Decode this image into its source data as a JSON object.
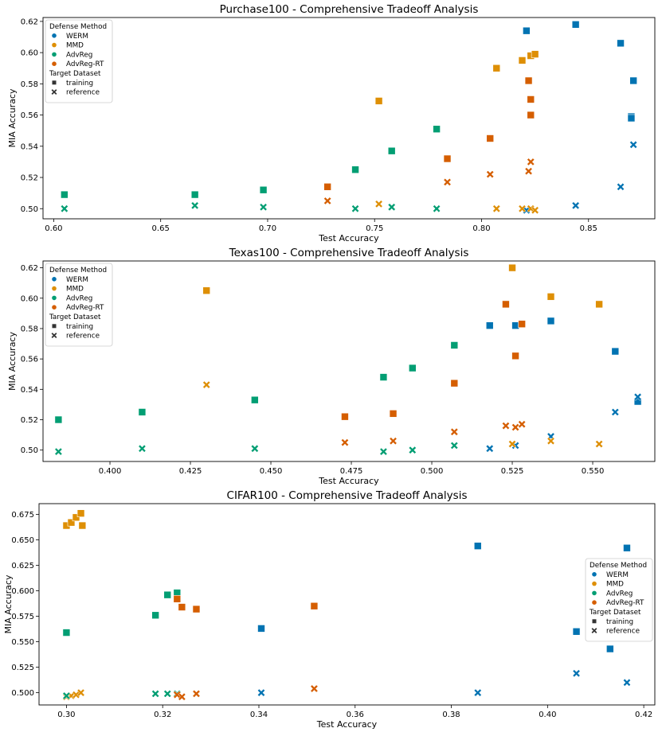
{
  "colors": {
    "WERM": "#0173b2",
    "MMD": "#de8f05",
    "AdvReg": "#029e73",
    "AdvReg-RT": "#d55e00"
  },
  "chart_data": [
    {
      "type": "scatter",
      "title": "Purchase100 - Comprehensive Tradeoff Analysis",
      "xlabel": "Test Accuracy",
      "ylabel": "MIA Accuracy",
      "xlim": [
        0.595,
        0.881
      ],
      "ylim": [
        0.4935,
        0.6225
      ],
      "xticks": [
        0.6,
        0.65,
        0.7,
        0.75,
        0.8,
        0.85
      ],
      "xtick_labels": [
        "0.60",
        "0.65",
        "0.70",
        "0.75",
        "0.80",
        "0.85"
      ],
      "yticks": [
        0.5,
        0.52,
        0.54,
        0.56,
        0.58,
        0.6,
        0.62
      ],
      "ytick_labels": [
        "0.50",
        "0.52",
        "0.54",
        "0.56",
        "0.58",
        "0.60",
        "0.62"
      ],
      "legend_position": "upper-left",
      "legend": {
        "title1": "Defense Method",
        "methods": [
          "WERM",
          "MMD",
          "AdvReg",
          "AdvReg-RT"
        ],
        "title2": "Target Dataset",
        "datasets": [
          "training",
          "reference"
        ]
      },
      "series": [
        {
          "name": "WERM",
          "marker": "training",
          "points": [
            [
              0.821,
              0.614
            ],
            [
              0.844,
              0.618
            ],
            [
              0.865,
              0.606
            ],
            [
              0.871,
              0.582
            ],
            [
              0.87,
              0.559
            ],
            [
              0.87,
              0.558
            ]
          ]
        },
        {
          "name": "WERM",
          "marker": "reference",
          "points": [
            [
              0.821,
              0.499
            ],
            [
              0.844,
              0.502
            ],
            [
              0.865,
              0.514
            ],
            [
              0.871,
              0.541
            ]
          ]
        },
        {
          "name": "MMD",
          "marker": "training",
          "points": [
            [
              0.752,
              0.569
            ],
            [
              0.807,
              0.59
            ],
            [
              0.819,
              0.595
            ],
            [
              0.823,
              0.598
            ],
            [
              0.825,
              0.599
            ]
          ]
        },
        {
          "name": "MMD",
          "marker": "reference",
          "points": [
            [
              0.752,
              0.503
            ],
            [
              0.807,
              0.5
            ],
            [
              0.819,
              0.5
            ],
            [
              0.823,
              0.5
            ],
            [
              0.825,
              0.499
            ]
          ]
        },
        {
          "name": "AdvReg",
          "marker": "training",
          "points": [
            [
              0.605,
              0.509
            ],
            [
              0.666,
              0.509
            ],
            [
              0.698,
              0.512
            ],
            [
              0.741,
              0.525
            ],
            [
              0.758,
              0.537
            ],
            [
              0.779,
              0.551
            ]
          ]
        },
        {
          "name": "AdvReg",
          "marker": "reference",
          "points": [
            [
              0.605,
              0.5
            ],
            [
              0.666,
              0.502
            ],
            [
              0.698,
              0.501
            ],
            [
              0.741,
              0.5
            ],
            [
              0.758,
              0.501
            ],
            [
              0.779,
              0.5
            ]
          ]
        },
        {
          "name": "AdvReg-RT",
          "marker": "training",
          "points": [
            [
              0.728,
              0.514
            ],
            [
              0.784,
              0.532
            ],
            [
              0.804,
              0.545
            ],
            [
              0.822,
              0.582
            ],
            [
              0.823,
              0.57
            ],
            [
              0.823,
              0.56
            ]
          ]
        },
        {
          "name": "AdvReg-RT",
          "marker": "reference",
          "points": [
            [
              0.728,
              0.505
            ],
            [
              0.784,
              0.517
            ],
            [
              0.804,
              0.522
            ],
            [
              0.822,
              0.524
            ],
            [
              0.823,
              0.53
            ]
          ]
        }
      ]
    },
    {
      "type": "scatter",
      "title": "Texas100 - Comprehensive Tradeoff Analysis",
      "xlabel": "Test Accuracy",
      "ylabel": "MIA Accuracy",
      "xlim": [
        0.3792,
        0.5693
      ],
      "ylim": [
        0.4925,
        0.6245
      ],
      "xticks": [
        0.4,
        0.425,
        0.45,
        0.475,
        0.5,
        0.525,
        0.55
      ],
      "xtick_labels": [
        "0.400",
        "0.425",
        "0.450",
        "0.475",
        "0.500",
        "0.525",
        "0.550"
      ],
      "yticks": [
        0.5,
        0.52,
        0.54,
        0.56,
        0.58,
        0.6,
        0.62
      ],
      "ytick_labels": [
        "0.50",
        "0.52",
        "0.54",
        "0.56",
        "0.58",
        "0.60",
        "0.62"
      ],
      "legend_position": "upper-left",
      "legend": {
        "title1": "Defense Method",
        "methods": [
          "WERM",
          "MMD",
          "AdvReg",
          "AdvReg-RT"
        ],
        "title2": "Target Dataset",
        "datasets": [
          "training",
          "reference"
        ]
      },
      "series": [
        {
          "name": "WERM",
          "marker": "training",
          "points": [
            [
              0.518,
              0.582
            ],
            [
              0.526,
              0.582
            ],
            [
              0.537,
              0.585
            ],
            [
              0.557,
              0.565
            ],
            [
              0.564,
              0.532
            ]
          ]
        },
        {
          "name": "WERM",
          "marker": "reference",
          "points": [
            [
              0.518,
              0.501
            ],
            [
              0.526,
              0.503
            ],
            [
              0.537,
              0.509
            ],
            [
              0.557,
              0.525
            ],
            [
              0.564,
              0.535
            ]
          ]
        },
        {
          "name": "MMD",
          "marker": "training",
          "points": [
            [
              0.43,
              0.605
            ],
            [
              0.525,
              0.62
            ],
            [
              0.537,
              0.601
            ],
            [
              0.552,
              0.596
            ]
          ]
        },
        {
          "name": "MMD",
          "marker": "reference",
          "points": [
            [
              0.43,
              0.543
            ],
            [
              0.525,
              0.504
            ],
            [
              0.537,
              0.506
            ],
            [
              0.552,
              0.504
            ]
          ]
        },
        {
          "name": "AdvReg",
          "marker": "training",
          "points": [
            [
              0.384,
              0.52
            ],
            [
              0.41,
              0.525
            ],
            [
              0.445,
              0.533
            ],
            [
              0.485,
              0.548
            ],
            [
              0.494,
              0.554
            ],
            [
              0.507,
              0.569
            ]
          ]
        },
        {
          "name": "AdvReg",
          "marker": "reference",
          "points": [
            [
              0.384,
              0.499
            ],
            [
              0.41,
              0.501
            ],
            [
              0.445,
              0.501
            ],
            [
              0.485,
              0.499
            ],
            [
              0.494,
              0.5
            ],
            [
              0.507,
              0.503
            ]
          ]
        },
        {
          "name": "AdvReg-RT",
          "marker": "training",
          "points": [
            [
              0.473,
              0.522
            ],
            [
              0.488,
              0.524
            ],
            [
              0.507,
              0.544
            ],
            [
              0.523,
              0.596
            ],
            [
              0.526,
              0.562
            ],
            [
              0.528,
              0.583
            ]
          ]
        },
        {
          "name": "AdvReg-RT",
          "marker": "reference",
          "points": [
            [
              0.473,
              0.505
            ],
            [
              0.488,
              0.506
            ],
            [
              0.507,
              0.512
            ],
            [
              0.523,
              0.516
            ],
            [
              0.526,
              0.515
            ],
            [
              0.528,
              0.517
            ]
          ]
        }
      ]
    },
    {
      "type": "scatter",
      "title": "CIFAR100 - Comprehensive Tradeoff Analysis",
      "xlabel": "Test Accuracy",
      "ylabel": "MIA Accuracy",
      "xlim": [
        0.2943,
        0.4223
      ],
      "ylim": [
        0.488,
        0.6855
      ],
      "xticks": [
        0.3,
        0.32,
        0.34,
        0.36,
        0.38,
        0.4,
        0.42
      ],
      "xtick_labels": [
        "0.30",
        "0.32",
        "0.34",
        "0.36",
        "0.38",
        "0.40",
        "0.42"
      ],
      "yticks": [
        0.5,
        0.525,
        0.55,
        0.575,
        0.6,
        0.625,
        0.65,
        0.675
      ],
      "ytick_labels": [
        "0.500",
        "0.525",
        "0.550",
        "0.575",
        "0.600",
        "0.625",
        "0.650",
        "0.675"
      ],
      "legend_position": "center-right",
      "legend": {
        "title1": "Defense Method",
        "methods": [
          "WERM",
          "MMD",
          "AdvReg",
          "AdvReg-RT"
        ],
        "title2": "Target Dataset",
        "datasets": [
          "training",
          "reference"
        ]
      },
      "series": [
        {
          "name": "WERM",
          "marker": "training",
          "points": [
            [
              0.3405,
              0.563
            ],
            [
              0.3855,
              0.644
            ],
            [
              0.406,
              0.56
            ],
            [
              0.413,
              0.543
            ],
            [
              0.4165,
              0.642
            ]
          ]
        },
        {
          "name": "WERM",
          "marker": "reference",
          "points": [
            [
              0.3405,
              0.5
            ],
            [
              0.3855,
              0.5
            ],
            [
              0.406,
              0.519
            ],
            [
              0.4165,
              0.51
            ]
          ]
        },
        {
          "name": "MMD",
          "marker": "training",
          "points": [
            [
              0.3,
              0.664
            ],
            [
              0.301,
              0.667
            ],
            [
              0.302,
              0.672
            ],
            [
              0.303,
              0.676
            ],
            [
              0.3033,
              0.664
            ]
          ]
        },
        {
          "name": "MMD",
          "marker": "reference",
          "points": [
            [
              0.3,
              0.496
            ],
            [
              0.301,
              0.497
            ],
            [
              0.302,
              0.498
            ],
            [
              0.303,
              0.5
            ]
          ]
        },
        {
          "name": "AdvReg",
          "marker": "training",
          "points": [
            [
              0.3,
              0.559
            ],
            [
              0.3185,
              0.576
            ],
            [
              0.321,
              0.596
            ],
            [
              0.323,
              0.598
            ]
          ]
        },
        {
          "name": "AdvReg",
          "marker": "reference",
          "points": [
            [
              0.3,
              0.497
            ],
            [
              0.3185,
              0.499
            ],
            [
              0.321,
              0.499
            ],
            [
              0.323,
              0.499
            ]
          ]
        },
        {
          "name": "AdvReg-RT",
          "marker": "training",
          "points": [
            [
              0.323,
              0.592
            ],
            [
              0.324,
              0.584
            ],
            [
              0.327,
              0.582
            ],
            [
              0.3515,
              0.585
            ]
          ]
        },
        {
          "name": "AdvReg-RT",
          "marker": "reference",
          "points": [
            [
              0.323,
              0.498
            ],
            [
              0.324,
              0.496
            ],
            [
              0.327,
              0.499
            ],
            [
              0.3515,
              0.504
            ]
          ]
        }
      ]
    }
  ]
}
